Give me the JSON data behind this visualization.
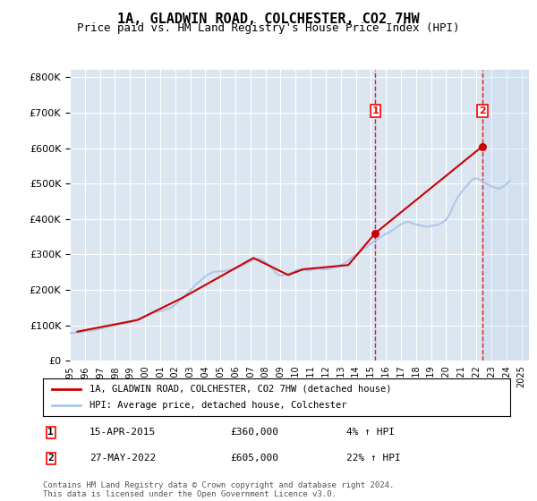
{
  "title": "1A, GLADWIN ROAD, COLCHESTER, CO2 7HW",
  "subtitle": "Price paid vs. HM Land Registry's House Price Index (HPI)",
  "ylabel_ticks": [
    "£0",
    "£100K",
    "£200K",
    "£300K",
    "£400K",
    "£500K",
    "£600K",
    "£700K",
    "£800K"
  ],
  "ytick_vals": [
    0,
    100000,
    200000,
    300000,
    400000,
    500000,
    600000,
    700000,
    800000
  ],
  "ylim": [
    0,
    820000
  ],
  "xlim_start": 1995.0,
  "xlim_end": 2025.5,
  "background_color": "#ffffff",
  "plot_bg_color": "#dce6f1",
  "grid_color": "#ffffff",
  "hpi_color": "#aec6e8",
  "house_color": "#cc0000",
  "marker1_x": 2015.29,
  "marker1_y": 360000,
  "marker2_x": 2022.41,
  "marker2_y": 605000,
  "annotation1_label": "1",
  "annotation2_label": "2",
  "vline_color": "#cc0000",
  "legend_house": "1A, GLADWIN ROAD, COLCHESTER, CO2 7HW (detached house)",
  "legend_hpi": "HPI: Average price, detached house, Colchester",
  "note1_label": "1",
  "note1_date": "15-APR-2015",
  "note1_price": "£360,000",
  "note1_change": "4% ↑ HPI",
  "note2_label": "2",
  "note2_date": "27-MAY-2022",
  "note2_price": "£605,000",
  "note2_change": "22% ↑ HPI",
  "footer": "Contains HM Land Registry data © Crown copyright and database right 2024.\nThis data is licensed under the Open Government Licence v3.0.",
  "hpi_years": [
    1995,
    1995.25,
    1995.5,
    1995.75,
    1996,
    1996.25,
    1996.5,
    1996.75,
    1997,
    1997.25,
    1997.5,
    1997.75,
    1998,
    1998.25,
    1998.5,
    1998.75,
    1999,
    1999.25,
    1999.5,
    1999.75,
    2000,
    2000.25,
    2000.5,
    2000.75,
    2001,
    2001.25,
    2001.5,
    2001.75,
    2002,
    2002.25,
    2002.5,
    2002.75,
    2003,
    2003.25,
    2003.5,
    2003.75,
    2004,
    2004.25,
    2004.5,
    2004.75,
    2005,
    2005.25,
    2005.5,
    2005.75,
    2006,
    2006.25,
    2006.5,
    2006.75,
    2007,
    2007.25,
    2007.5,
    2007.75,
    2008,
    2008.25,
    2008.5,
    2008.75,
    2009,
    2009.25,
    2009.5,
    2009.75,
    2010,
    2010.25,
    2010.5,
    2010.75,
    2011,
    2011.25,
    2011.5,
    2011.75,
    2012,
    2012.25,
    2012.5,
    2012.75,
    2013,
    2013.25,
    2013.5,
    2013.75,
    2014,
    2014.25,
    2014.5,
    2014.75,
    2015,
    2015.25,
    2015.5,
    2015.75,
    2016,
    2016.25,
    2016.5,
    2016.75,
    2017,
    2017.25,
    2017.5,
    2017.75,
    2018,
    2018.25,
    2018.5,
    2018.75,
    2019,
    2019.25,
    2019.5,
    2019.75,
    2020,
    2020.25,
    2020.5,
    2020.75,
    2021,
    2021.25,
    2021.5,
    2021.75,
    2022,
    2022.25,
    2022.5,
    2022.75,
    2023,
    2023.25,
    2023.5,
    2023.75,
    2024,
    2024.25
  ],
  "hpi_vals": [
    78000,
    79000,
    80000,
    81000,
    83000,
    84000,
    85000,
    87000,
    90000,
    93000,
    96000,
    98000,
    100000,
    102000,
    104000,
    105000,
    108000,
    112000,
    116000,
    120000,
    125000,
    130000,
    135000,
    138000,
    140000,
    143000,
    147000,
    150000,
    158000,
    168000,
    178000,
    188000,
    198000,
    210000,
    220000,
    228000,
    238000,
    245000,
    250000,
    252000,
    252000,
    253000,
    255000,
    257000,
    260000,
    265000,
    270000,
    275000,
    280000,
    285000,
    288000,
    285000,
    278000,
    270000,
    258000,
    245000,
    240000,
    242000,
    245000,
    248000,
    255000,
    258000,
    258000,
    255000,
    255000,
    258000,
    260000,
    258000,
    258000,
    260000,
    263000,
    265000,
    270000,
    275000,
    283000,
    292000,
    298000,
    305000,
    315000,
    322000,
    330000,
    338000,
    345000,
    352000,
    358000,
    363000,
    370000,
    378000,
    385000,
    390000,
    392000,
    388000,
    385000,
    382000,
    380000,
    378000,
    380000,
    382000,
    385000,
    390000,
    398000,
    415000,
    440000,
    460000,
    475000,
    488000,
    500000,
    512000,
    515000,
    510000,
    505000,
    498000,
    492000,
    488000,
    485000,
    490000,
    498000,
    508000
  ],
  "house_years": [
    1995.5,
    1999.5,
    2002.5,
    2007.2,
    2009.5,
    2010.5,
    2013.5,
    2015.29,
    2022.41
  ],
  "house_vals": [
    82000,
    115000,
    178000,
    290000,
    242000,
    258000,
    270000,
    360000,
    605000
  ],
  "xtick_years": [
    1995,
    1996,
    1997,
    1998,
    1999,
    2000,
    2001,
    2002,
    2003,
    2004,
    2005,
    2006,
    2007,
    2008,
    2009,
    2010,
    2011,
    2012,
    2013,
    2014,
    2015,
    2016,
    2017,
    2018,
    2019,
    2020,
    2021,
    2022,
    2023,
    2024,
    2025
  ]
}
